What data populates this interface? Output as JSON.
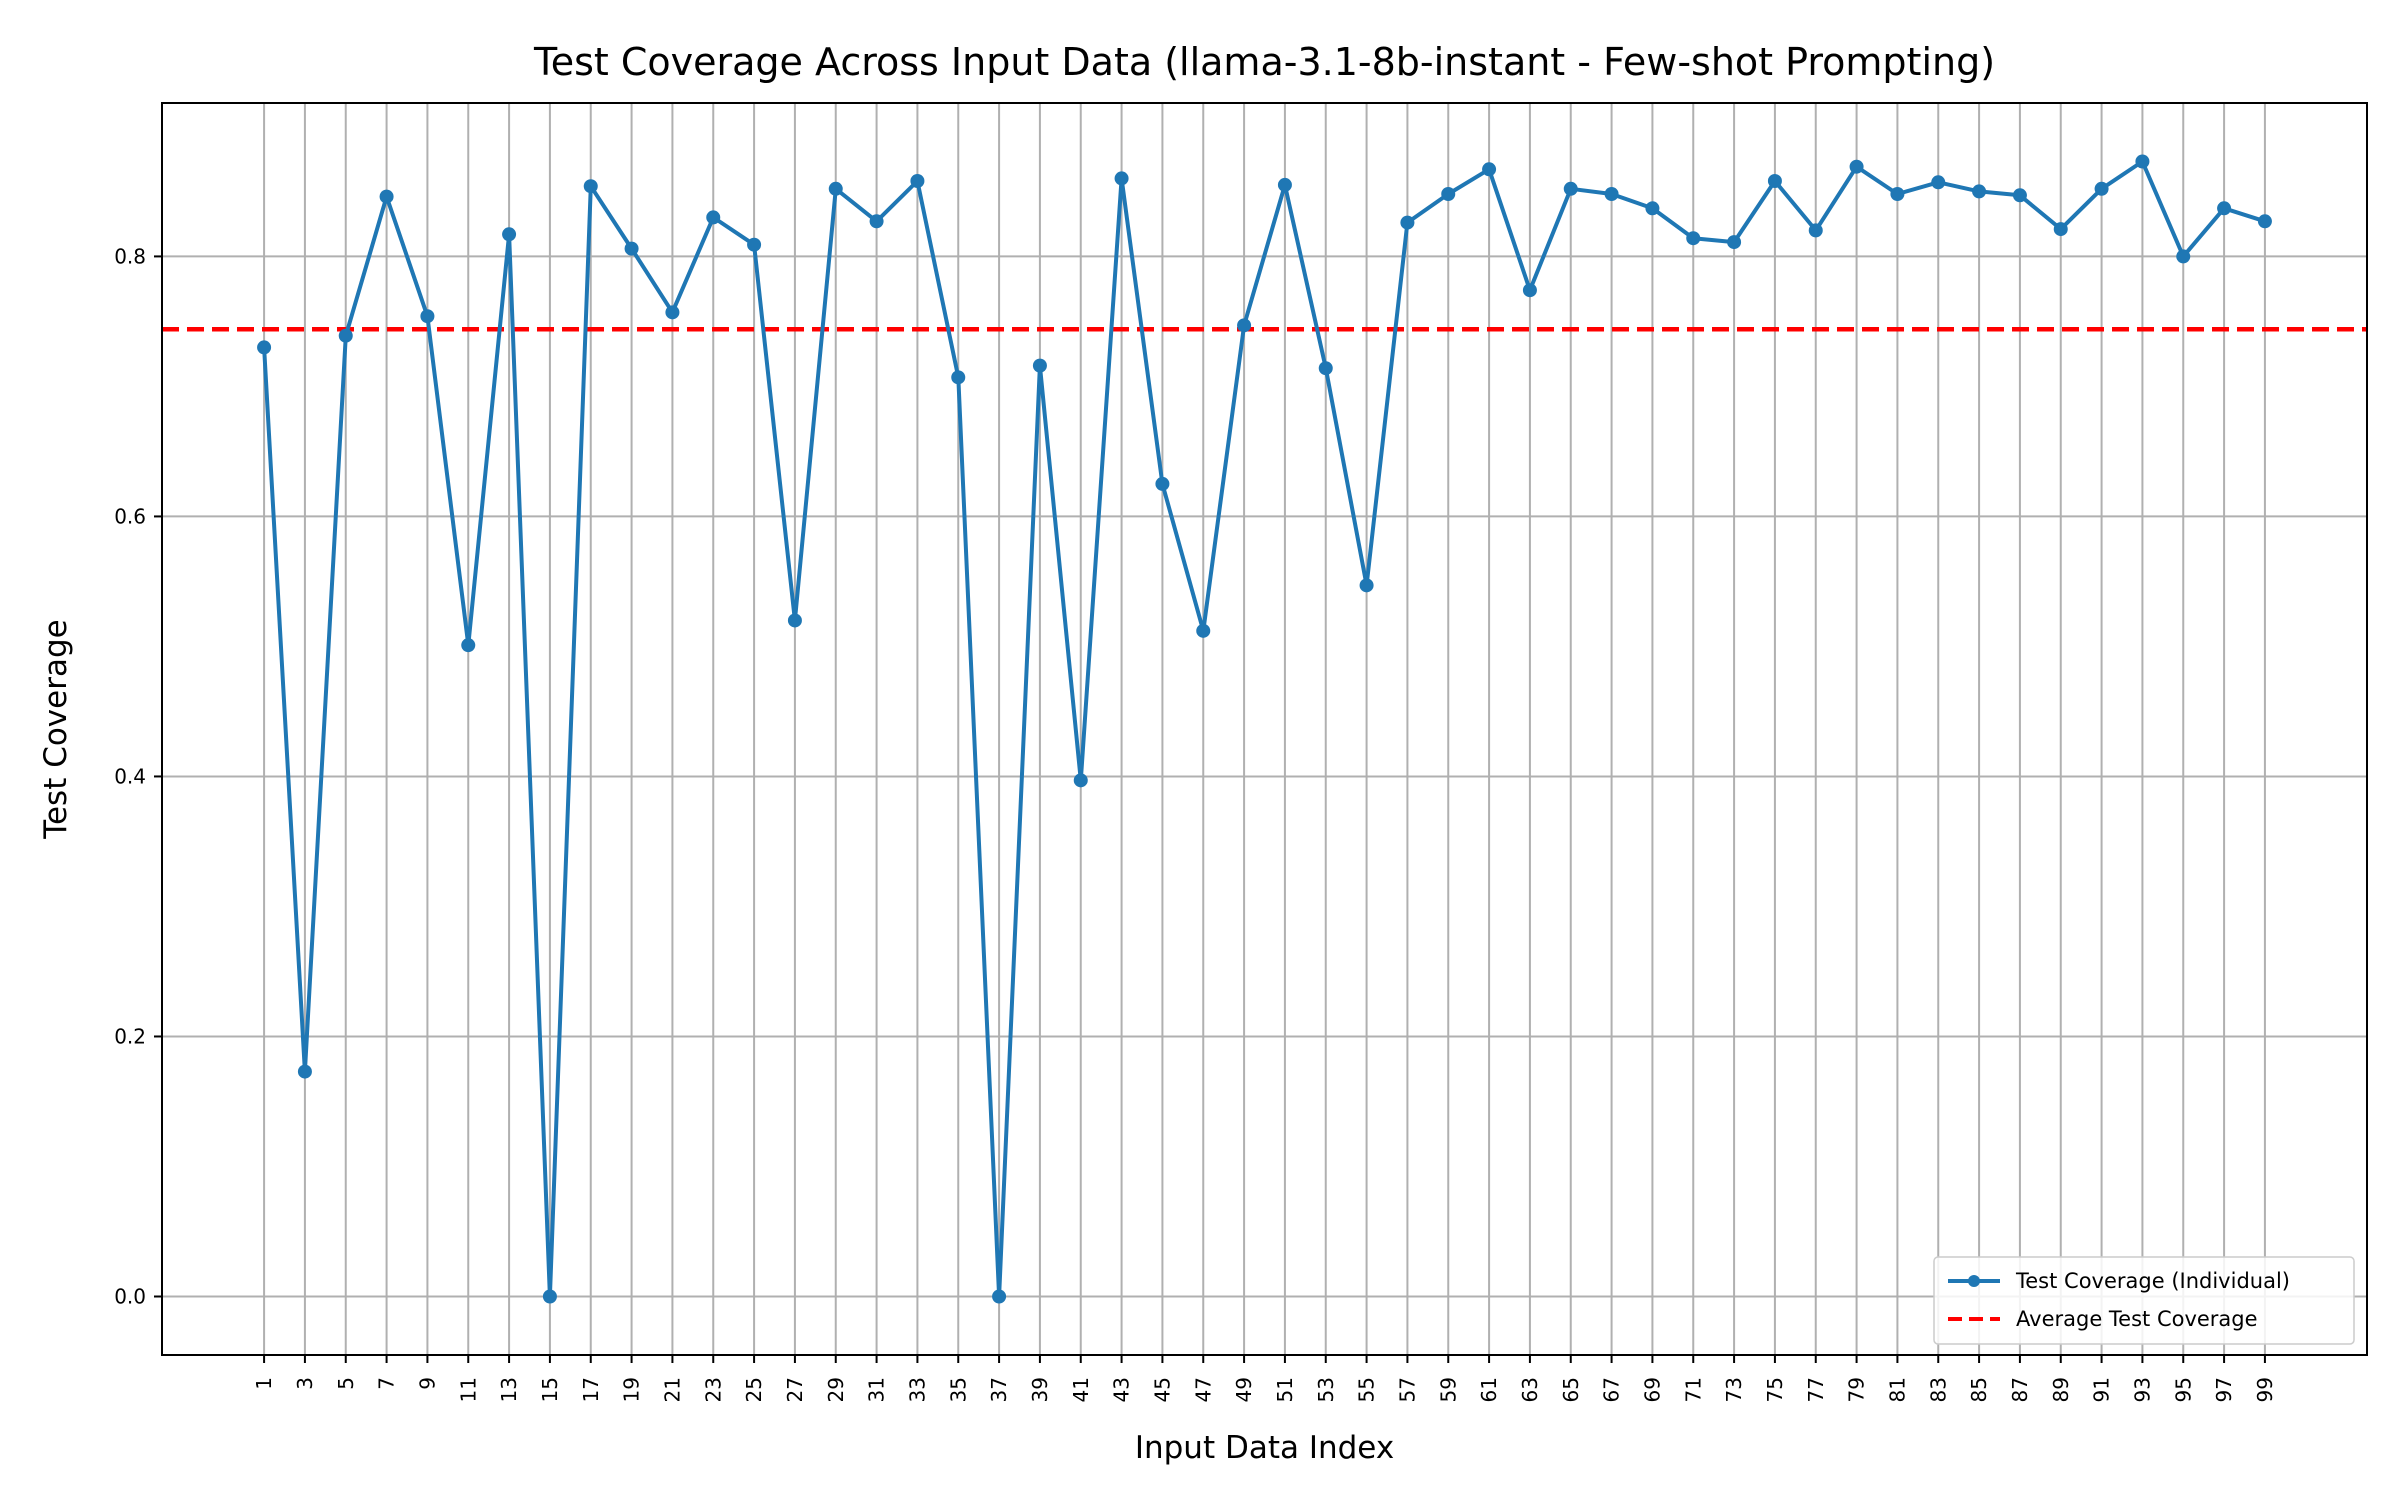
{
  "chart_data": {
    "type": "line",
    "title": "Test Coverage Across Input Data (llama-3.1-8b-instant - Few-shot Prompting)",
    "xlabel": "Input Data Index",
    "ylabel": "Test Coverage",
    "x": [
      1,
      3,
      5,
      7,
      9,
      11,
      13,
      15,
      17,
      19,
      21,
      23,
      25,
      27,
      29,
      31,
      33,
      35,
      37,
      39,
      41,
      43,
      45,
      47,
      49,
      51,
      53,
      55,
      57,
      59,
      61,
      63,
      65,
      67,
      69,
      71,
      73,
      75,
      77,
      79,
      81,
      83,
      85,
      87,
      89,
      91,
      93,
      95,
      97,
      99
    ],
    "xticks": [
      "1",
      "3",
      "5",
      "7",
      "9",
      "11",
      "13",
      "15",
      "17",
      "19",
      "21",
      "23",
      "25",
      "27",
      "29",
      "31",
      "33",
      "35",
      "37",
      "39",
      "41",
      "43",
      "45",
      "47",
      "49",
      "51",
      "53",
      "55",
      "57",
      "59",
      "61",
      "63",
      "65",
      "67",
      "69",
      "71",
      "73",
      "75",
      "77",
      "79",
      "81",
      "83",
      "85",
      "87",
      "89",
      "91",
      "93",
      "95",
      "97",
      "99"
    ],
    "yticks": [
      "0.0",
      "0.2",
      "0.4",
      "0.6",
      "0.8"
    ],
    "xlim": [
      -4,
      104
    ],
    "ylim": [
      -0.045,
      0.918
    ],
    "grid": true,
    "legend_position": "bottom-right",
    "series": [
      {
        "name": "Test Coverage (Individual)",
        "color": "#1f77b4",
        "values": [
          0.73,
          0.173,
          0.739,
          0.846,
          0.754,
          0.501,
          0.817,
          0.0,
          0.854,
          0.806,
          0.757,
          0.83,
          0.809,
          0.52,
          0.852,
          0.827,
          0.858,
          0.707,
          0.0,
          0.716,
          0.397,
          0.86,
          0.625,
          0.512,
          0.747,
          0.855,
          0.714,
          0.547,
          0.826,
          0.848,
          0.867,
          0.774,
          0.852,
          0.848,
          0.837,
          0.814,
          0.811,
          0.858,
          0.82,
          0.869,
          0.848,
          0.857,
          0.85,
          0.847,
          0.821,
          0.852,
          0.873,
          0.8,
          0.837,
          0.827
        ]
      }
    ],
    "average": {
      "name": "Average Test Coverage",
      "color": "#ff0000",
      "value": 0.744
    }
  }
}
